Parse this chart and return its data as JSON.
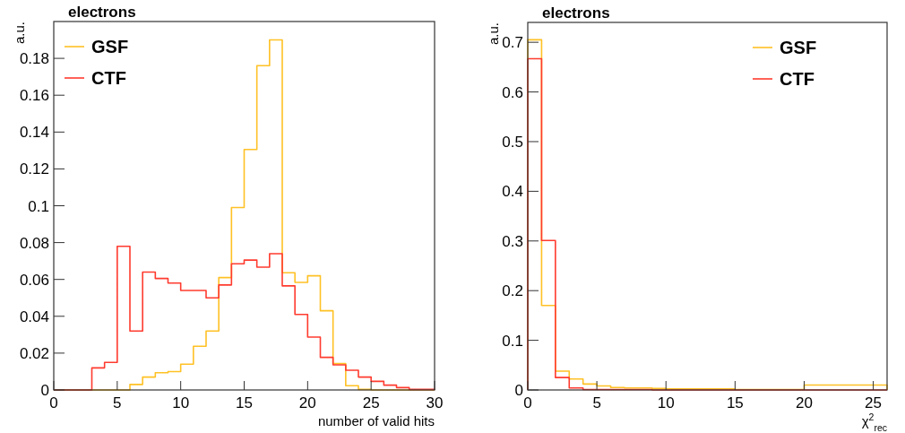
{
  "chart_data": [
    {
      "type": "histogram",
      "title": "electrons",
      "xlabel": "number of valid hits",
      "ylabel": "a.u.",
      "bins": [
        0,
        1,
        2,
        3,
        4,
        5,
        6,
        7,
        8,
        9,
        10,
        11,
        12,
        13,
        14,
        15,
        16,
        17,
        18,
        19,
        20,
        21,
        22,
        23,
        24,
        25,
        26,
        27,
        28,
        29,
        30
      ],
      "xlim": [
        0,
        30
      ],
      "xticks": [
        0,
        5,
        10,
        15,
        20,
        25,
        30
      ],
      "ylim": [
        0,
        0.2
      ],
      "yticks": [
        0,
        0.02,
        0.04,
        0.06,
        0.08,
        0.1,
        0.12,
        0.14,
        0.16,
        0.18
      ],
      "legend": "top left",
      "series": [
        {
          "name": "GSF",
          "color": "#ffc125",
          "values": [
            0,
            0,
            0,
            0,
            0,
            0,
            0.003,
            0.007,
            0.0094,
            0.01,
            0.014,
            0.0237,
            0.032,
            0.061,
            0.099,
            0.1305,
            0.176,
            0.19,
            0.0636,
            0.0584,
            0.062,
            0.043,
            0.0143,
            0.0023,
            0.0003,
            0,
            0,
            0,
            0,
            0
          ]
        },
        {
          "name": "CTF",
          "color": "#ff3b2f",
          "values": [
            0,
            0,
            0,
            0.012,
            0.015,
            0.078,
            0.032,
            0.064,
            0.0605,
            0.058,
            0.054,
            0.054,
            0.05,
            0.057,
            0.0685,
            0.0705,
            0.0667,
            0.074,
            0.0565,
            0.041,
            0.0287,
            0.0177,
            0.0136,
            0.0107,
            0.007,
            0.0047,
            0.0026,
            0.0013,
            0.0003,
            0.0003
          ]
        }
      ]
    },
    {
      "type": "histogram",
      "title": "electrons",
      "xlabel": "χ$^{2}$$_{rec}$",
      "ylabel": "a.u.",
      "bins": [
        0,
        1,
        2,
        3,
        4,
        5,
        6,
        7,
        8,
        9,
        10,
        11,
        12,
        13,
        14,
        15,
        16,
        17,
        18,
        19,
        20,
        21,
        22,
        23,
        24,
        25,
        26
      ],
      "xlim": [
        0,
        26
      ],
      "xticks": [
        0,
        5,
        10,
        15,
        20,
        25
      ],
      "ylim": [
        0,
        0.74
      ],
      "yticks": [
        0,
        0.1,
        0.2,
        0.3,
        0.4,
        0.5,
        0.6,
        0.7
      ],
      "legend": "top right",
      "series": [
        {
          "name": "GSF",
          "color": "#ffc125",
          "values": [
            0.705,
            0.17,
            0.038,
            0.022,
            0.012,
            0.008,
            0.005,
            0.004,
            0.004,
            0.003,
            0.002,
            0.002,
            0.002,
            0.002,
            0.002,
            0.001,
            0.001,
            0.001,
            0.001,
            0.001,
            0.01,
            0.01,
            0.01,
            0.01,
            0.01,
            0.01
          ]
        },
        {
          "name": "CTF",
          "color": "#ff3b2f",
          "values": [
            0.667,
            0.301,
            0.025,
            0.004,
            0.001,
            0.001,
            0.001,
            0.001,
            0.001,
            0,
            0,
            0,
            0,
            0,
            0,
            0,
            0,
            0,
            0,
            0,
            0,
            0,
            0,
            0,
            0,
            0
          ]
        }
      ]
    }
  ]
}
